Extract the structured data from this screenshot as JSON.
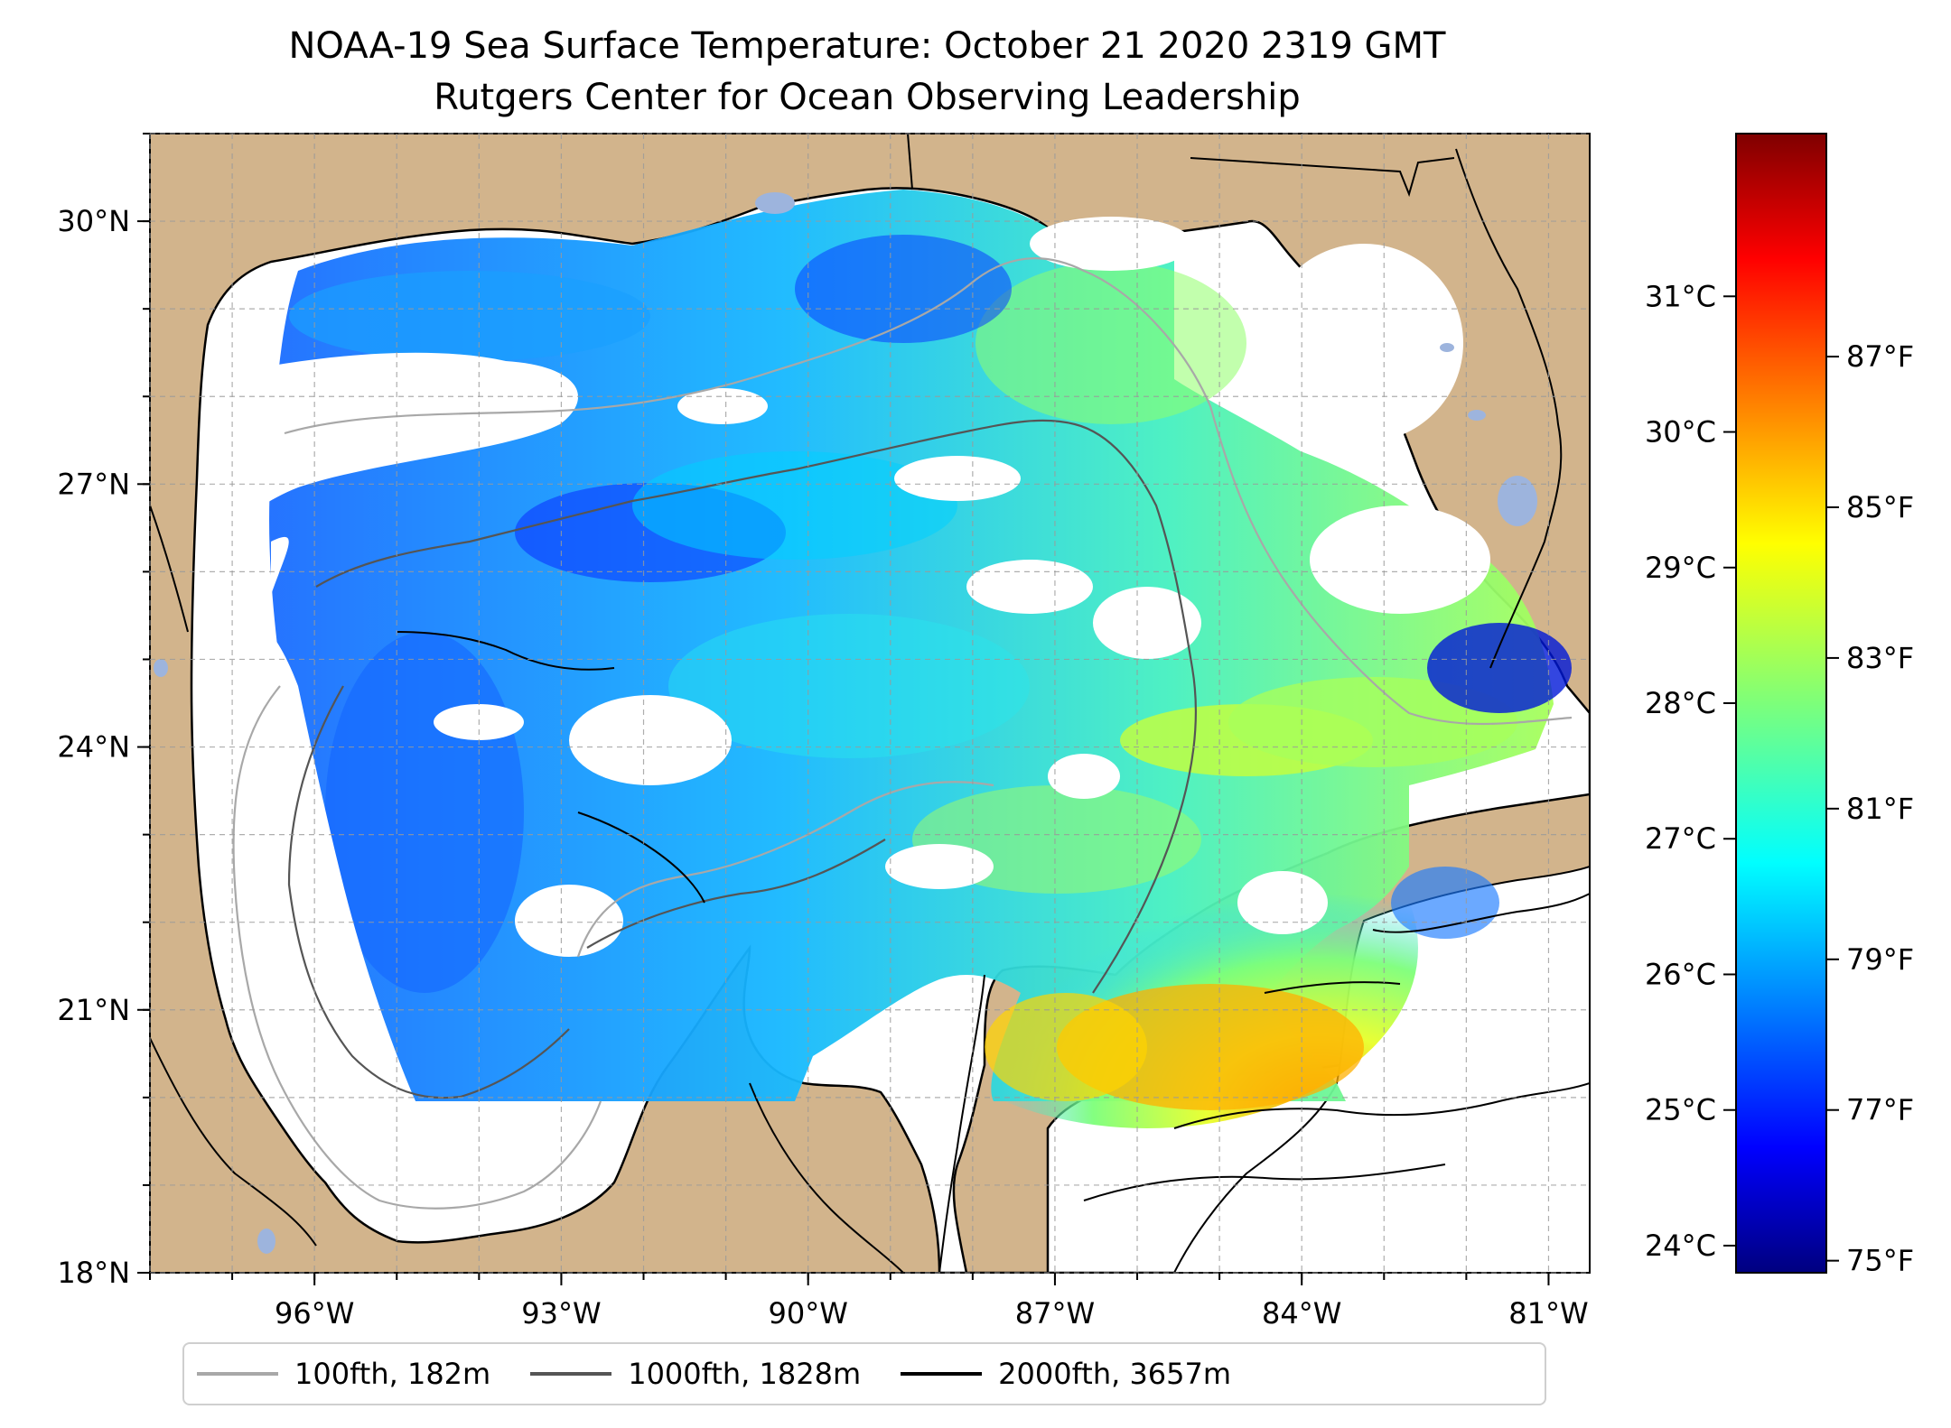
{
  "title": {
    "line1": "NOAA-19 Sea Surface Temperature: October 21 2020 2319 GMT",
    "line2": "Rutgers Center for Ocean Observing Leadership"
  },
  "map": {
    "lon_range": [
      -98.0,
      -80.5
    ],
    "lat_range": [
      18.0,
      31.0
    ],
    "lat_ticks": [
      {
        "value": 30,
        "label": "30°N"
      },
      {
        "value": 27,
        "label": "27°N"
      },
      {
        "value": 24,
        "label": "24°N"
      },
      {
        "value": 21,
        "label": "21°N"
      },
      {
        "value": 18,
        "label": "18°N"
      }
    ],
    "lon_ticks": [
      {
        "value": -96,
        "label": "96°W"
      },
      {
        "value": -93,
        "label": "93°W"
      },
      {
        "value": -90,
        "label": "90°W"
      },
      {
        "value": -87,
        "label": "87°W"
      },
      {
        "value": -84,
        "label": "84°W"
      },
      {
        "value": -81,
        "label": "81°W"
      }
    ],
    "land_color": "#D2B48C",
    "water_color": "#9DB4DD",
    "cloud_color": "#ffffff"
  },
  "colorbar": {
    "celsius_range": [
      23.8,
      32.2
    ],
    "celsius_ticks": [
      {
        "value": 24,
        "label": "24°C"
      },
      {
        "value": 25,
        "label": "25°C"
      },
      {
        "value": 26,
        "label": "26°C"
      },
      {
        "value": 27,
        "label": "27°C"
      },
      {
        "value": 28,
        "label": "28°C"
      },
      {
        "value": 29,
        "label": "29°C"
      },
      {
        "value": 30,
        "label": "30°C"
      },
      {
        "value": 31,
        "label": "31°C"
      }
    ],
    "fahrenheit_ticks": [
      {
        "value": 75,
        "label": "75°F"
      },
      {
        "value": 77,
        "label": "77°F"
      },
      {
        "value": 79,
        "label": "79°F"
      },
      {
        "value": 81,
        "label": "81°F"
      },
      {
        "value": 83,
        "label": "83°F"
      },
      {
        "value": 85,
        "label": "85°F"
      },
      {
        "value": 87,
        "label": "87°F"
      }
    ],
    "colormap": "jet"
  },
  "legend": {
    "items": [
      {
        "label": "100fth, 182m",
        "color": "#a8a8a8"
      },
      {
        "label": "1000fth, 1828m",
        "color": "#555555"
      },
      {
        "label": "2000fth, 3657m",
        "color": "#000000"
      }
    ]
  }
}
